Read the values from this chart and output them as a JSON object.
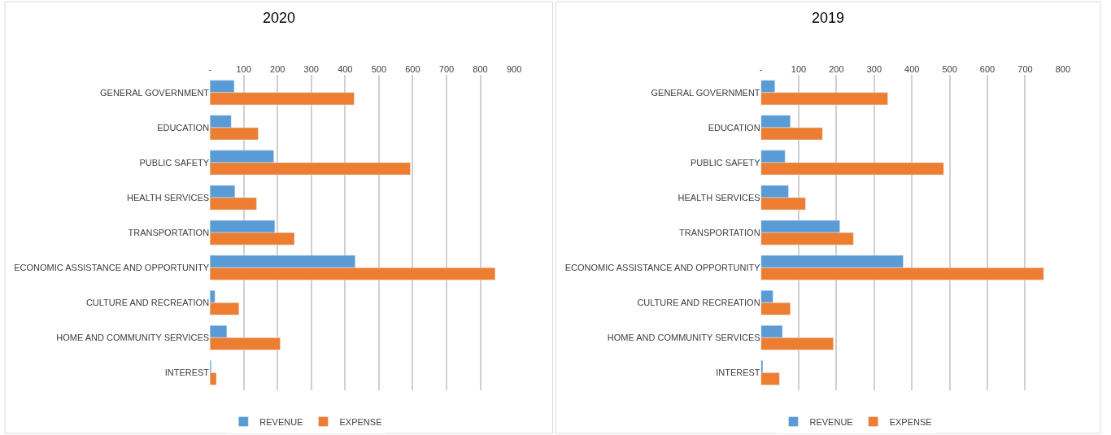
{
  "chart_data": [
    {
      "type": "bar",
      "title": "2020",
      "orientation": "horizontal",
      "categories": [
        "GENERAL GOVERNMENT",
        "EDUCATION",
        "PUBLIC SAFETY",
        "HEALTH SERVICES",
        "TRANSPORTATION",
        "ECONOMIC ASSISTANCE AND OPPORTUNITY",
        "CULTURE AND RECREATION",
        "HOME AND COMMUNITY SERVICES",
        "INTEREST"
      ],
      "series": [
        {
          "name": "REVENUE",
          "color": "#5b9bd5",
          "values": [
            72,
            63,
            189,
            74,
            192,
            430,
            15,
            50,
            4
          ]
        },
        {
          "name": "EXPENSE",
          "color": "#ed7d31",
          "values": [
            427,
            143,
            593,
            138,
            250,
            844,
            86,
            208,
            19
          ]
        }
      ],
      "xlim": [
        0,
        900
      ],
      "xticks": [
        {
          "value": 0,
          "label": "-"
        },
        100,
        200,
        300,
        400,
        500,
        600,
        700,
        800,
        900
      ],
      "grid": "x",
      "legend": "bottom"
    },
    {
      "type": "bar",
      "title": "2019",
      "orientation": "horizontal",
      "categories": [
        "GENERAL GOVERNMENT",
        "EDUCATION",
        "PUBLIC SAFETY",
        "HEALTH SERVICES",
        "TRANSPORTATION",
        "ECONOMIC ASSISTANCE AND OPPORTUNITY",
        "CULTURE AND RECREATION",
        "HOME AND COMMUNITY SERVICES",
        "INTEREST"
      ],
      "series": [
        {
          "name": "REVENUE",
          "color": "#5b9bd5",
          "values": [
            37,
            78,
            64,
            73,
            209,
            377,
            32,
            57,
            5
          ]
        },
        {
          "name": "EXPENSE",
          "color": "#ed7d31",
          "values": [
            336,
            163,
            484,
            118,
            245,
            749,
            78,
            192,
            49
          ]
        }
      ],
      "xlim": [
        0,
        800
      ],
      "xticks": [
        {
          "value": 0,
          "label": "-"
        },
        100,
        200,
        300,
        400,
        500,
        600,
        700,
        800
      ],
      "grid": "x",
      "legend": "bottom"
    }
  ]
}
